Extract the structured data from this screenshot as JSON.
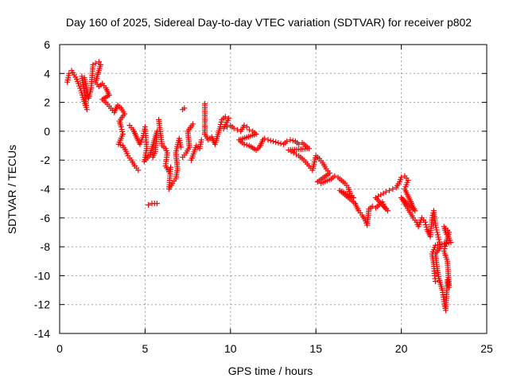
{
  "chart_data": {
    "type": "scatter",
    "title": "Day 160 of 2025, Sidereal Day-to-day VTEC variation (SDTVAR) for receiver p802",
    "xlabel": "GPS time / hours",
    "ylabel": "SDTVAR / TECUs",
    "xlim": [
      0,
      25
    ],
    "ylim": [
      -14,
      6
    ],
    "x_ticks": [
      0,
      5,
      10,
      15,
      20,
      25
    ],
    "y_ticks": [
      -14,
      -12,
      -10,
      -8,
      -6,
      -4,
      -2,
      0,
      2,
      4,
      6
    ],
    "x_tick_labels": [
      "0",
      "5",
      "10",
      "15",
      "20",
      "25"
    ],
    "y_tick_labels": [
      "-14",
      "-12",
      "-10",
      "-8",
      "-6",
      "-4",
      "-2",
      "0",
      "2",
      "4",
      "6"
    ],
    "grid": true,
    "marker": "+",
    "series": [
      {
        "name": "p802",
        "color": "#ff0000",
        "points": [
          [
            0.45,
            3.4
          ],
          [
            0.55,
            4.0
          ],
          [
            0.7,
            4.2
          ],
          [
            0.85,
            3.9
          ],
          [
            1.0,
            3.6
          ],
          [
            1.1,
            3.3
          ],
          [
            1.25,
            2.8
          ],
          [
            1.4,
            2.2
          ],
          [
            1.5,
            1.8
          ],
          [
            1.6,
            1.5
          ],
          [
            1.3,
            3.8
          ],
          [
            1.45,
            3.7
          ],
          [
            1.7,
            2.3
          ],
          [
            1.85,
            3.0
          ],
          [
            1.95,
            4.6
          ],
          [
            2.1,
            4.7
          ],
          [
            2.3,
            4.8
          ],
          [
            2.4,
            4.6
          ],
          [
            2.1,
            3.4
          ],
          [
            2.3,
            3.1
          ],
          [
            2.5,
            3.3
          ],
          [
            2.7,
            3.0
          ],
          [
            2.9,
            2.5
          ],
          [
            2.5,
            2.2
          ],
          [
            2.7,
            2.0
          ],
          [
            3.0,
            1.6
          ],
          [
            3.2,
            1.3
          ],
          [
            3.4,
            1.8
          ],
          [
            3.6,
            1.6
          ],
          [
            3.8,
            1.2
          ],
          [
            3.5,
            0.7
          ],
          [
            3.6,
            0.3
          ],
          [
            3.7,
            -0.2
          ],
          [
            3.45,
            -0.9
          ],
          [
            3.7,
            -1.0
          ],
          [
            3.9,
            -1.4
          ],
          [
            4.0,
            -1.7
          ],
          [
            4.2,
            -2.0
          ],
          [
            4.4,
            -2.4
          ],
          [
            4.6,
            -2.7
          ],
          [
            4.1,
            0.4
          ],
          [
            4.3,
            0.1
          ],
          [
            4.5,
            -0.4
          ],
          [
            4.7,
            -0.9
          ],
          [
            4.9,
            -0.3
          ],
          [
            5.0,
            0.3
          ],
          [
            5.1,
            -1.2
          ],
          [
            4.95,
            -2.1
          ],
          [
            5.3,
            -1.6
          ],
          [
            5.5,
            -0.8
          ],
          [
            5.7,
            0.0
          ],
          [
            5.6,
            -1.4
          ],
          [
            5.45,
            -1.8
          ],
          [
            5.2,
            -5.1
          ],
          [
            5.4,
            -5.0
          ],
          [
            5.7,
            -5.0
          ],
          [
            5.8,
            0.8
          ],
          [
            6.0,
            -1.0
          ],
          [
            6.2,
            -1.2
          ],
          [
            6.3,
            -1.5
          ],
          [
            6.2,
            -2.4
          ],
          [
            6.4,
            -2.8
          ],
          [
            6.5,
            -2.5
          ],
          [
            6.4,
            -4.0
          ],
          [
            6.6,
            -3.6
          ],
          [
            6.8,
            -3.3
          ],
          [
            6.9,
            -2.6
          ],
          [
            6.8,
            -1.5
          ],
          [
            7.0,
            -0.5
          ],
          [
            7.1,
            -1.1
          ],
          [
            7.2,
            1.5
          ],
          [
            7.3,
            1.6
          ],
          [
            7.2,
            -1.8
          ],
          [
            7.4,
            -1.5
          ],
          [
            7.6,
            -1.1
          ],
          [
            7.5,
            0.0
          ],
          [
            7.8,
            0.5
          ],
          [
            7.7,
            -2.0
          ],
          [
            8.0,
            -1.0
          ],
          [
            8.2,
            -1.2
          ],
          [
            8.3,
            -0.6
          ],
          [
            8.5,
            1.9
          ],
          [
            8.5,
            -0.2
          ],
          [
            8.7,
            -0.6
          ],
          [
            8.9,
            -0.4
          ],
          [
            9.1,
            -0.9
          ],
          [
            9.3,
            -0.1
          ],
          [
            9.4,
            0.3
          ],
          [
            9.5,
            0.8
          ],
          [
            9.7,
            1.0
          ],
          [
            9.9,
            0.9
          ],
          [
            9.6,
            0.2
          ],
          [
            9.8,
            0.3
          ],
          [
            10.0,
            0.4
          ],
          [
            10.2,
            0.2
          ],
          [
            10.4,
            0.1
          ],
          [
            10.6,
            0.0
          ],
          [
            10.8,
            0.4
          ],
          [
            10.95,
            0.3
          ],
          [
            11.1,
            0.1
          ],
          [
            11.3,
            0.0
          ],
          [
            11.5,
            -0.2
          ],
          [
            10.5,
            -0.6
          ],
          [
            10.8,
            -0.9
          ],
          [
            11.1,
            -1.0
          ],
          [
            11.5,
            -1.3
          ],
          [
            11.7,
            -1.1
          ],
          [
            11.9,
            -0.6
          ],
          [
            12.0,
            -0.5
          ],
          [
            12.2,
            -0.6
          ],
          [
            12.5,
            -0.7
          ],
          [
            12.8,
            -0.8
          ],
          [
            13.1,
            -0.9
          ],
          [
            13.3,
            -0.7
          ],
          [
            13.5,
            -0.6
          ],
          [
            13.8,
            -0.7
          ],
          [
            14.0,
            -0.9
          ],
          [
            14.2,
            -0.8
          ],
          [
            14.4,
            -1.0
          ],
          [
            14.6,
            -1.2
          ],
          [
            13.4,
            -1.3
          ],
          [
            13.7,
            -1.5
          ],
          [
            14.0,
            -1.7
          ],
          [
            14.3,
            -2.0
          ],
          [
            14.6,
            -2.4
          ],
          [
            14.8,
            -2.7
          ],
          [
            15.0,
            -1.7
          ],
          [
            15.2,
            -1.9
          ],
          [
            15.4,
            -2.2
          ],
          [
            15.6,
            -2.6
          ],
          [
            15.8,
            -2.9
          ],
          [
            15.1,
            -3.5
          ],
          [
            15.3,
            -3.6
          ],
          [
            15.9,
            -3.3
          ],
          [
            16.1,
            -3.1
          ],
          [
            16.3,
            -3.2
          ],
          [
            16.5,
            -3.4
          ],
          [
            16.7,
            -3.6
          ],
          [
            16.9,
            -3.9
          ],
          [
            17.0,
            -4.3
          ],
          [
            17.2,
            -4.6
          ],
          [
            16.4,
            -4.1
          ],
          [
            16.6,
            -4.3
          ],
          [
            16.8,
            -4.5
          ],
          [
            17.3,
            -5.0
          ],
          [
            17.5,
            -5.5
          ],
          [
            17.7,
            -5.8
          ],
          [
            17.9,
            -6.2
          ],
          [
            18.0,
            -6.5
          ],
          [
            18.1,
            -5.4
          ],
          [
            18.3,
            -5.2
          ],
          [
            18.5,
            -5.3
          ],
          [
            18.7,
            -5.1
          ],
          [
            18.9,
            -4.9
          ],
          [
            19.0,
            -5.2
          ],
          [
            19.2,
            -5.5
          ],
          [
            18.5,
            -4.6
          ],
          [
            18.8,
            -4.4
          ],
          [
            19.1,
            -4.2
          ],
          [
            19.3,
            -4.1
          ],
          [
            19.5,
            -4.0
          ],
          [
            19.7,
            -3.9
          ],
          [
            19.9,
            -3.5
          ],
          [
            20.0,
            -3.2
          ],
          [
            20.2,
            -3.1
          ],
          [
            20.4,
            -3.4
          ],
          [
            20.2,
            -4.0
          ],
          [
            20.4,
            -4.5
          ],
          [
            20.6,
            -5.0
          ],
          [
            20.8,
            -5.5
          ],
          [
            20.0,
            -4.6
          ],
          [
            20.3,
            -5.2
          ],
          [
            20.5,
            -5.6
          ],
          [
            20.7,
            -6.0
          ],
          [
            20.9,
            -6.3
          ],
          [
            21.0,
            -6.6
          ],
          [
            21.2,
            -6.0
          ],
          [
            21.4,
            -6.3
          ],
          [
            21.5,
            -6.8
          ],
          [
            21.7,
            -7.3
          ],
          [
            21.8,
            -6.0
          ],
          [
            21.9,
            -5.5
          ],
          [
            22.0,
            -6.5
          ],
          [
            22.1,
            -7.0
          ],
          [
            22.2,
            -7.5
          ],
          [
            22.3,
            -8.0
          ],
          [
            22.0,
            -8.5
          ],
          [
            22.1,
            -9.5
          ],
          [
            22.2,
            -10.2
          ],
          [
            22.3,
            -10.6
          ],
          [
            22.4,
            -11.0
          ],
          [
            22.5,
            -11.8
          ],
          [
            22.6,
            -12.4
          ],
          [
            22.7,
            -10.3
          ],
          [
            22.8,
            -10.8
          ],
          [
            22.7,
            -9.0
          ],
          [
            22.5,
            -8.3
          ],
          [
            22.6,
            -7.8
          ],
          [
            22.7,
            -7.4
          ],
          [
            22.8,
            -7.0
          ],
          [
            22.5,
            -6.6
          ],
          [
            22.6,
            -7.0
          ],
          [
            22.8,
            -7.4
          ],
          [
            22.9,
            -7.7
          ],
          [
            22.0,
            -7.9
          ],
          [
            21.8,
            -8.5
          ],
          [
            21.9,
            -9.2
          ],
          [
            21.95,
            -10.0
          ],
          [
            22.0,
            -10.4
          ],
          [
            21.7,
            -7.0
          ]
        ]
      }
    ]
  }
}
